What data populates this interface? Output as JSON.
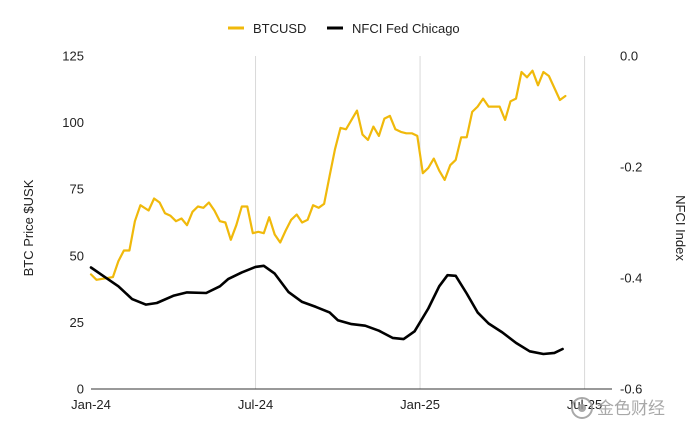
{
  "chart_data": {
    "type": "line",
    "title": "",
    "legend": {
      "placement": "top-center"
    },
    "grid": {
      "vertical": true,
      "horizontal": false
    },
    "x_ticks": [
      "Jan-24",
      "Jul-24",
      "Jan-25",
      "Jul-25"
    ],
    "x_range": [
      0,
      19
    ],
    "y_left": {
      "label": "BTC Price $USK",
      "range": [
        0,
        125
      ],
      "ticks": [
        0,
        25,
        50,
        75,
        100,
        125
      ]
    },
    "y_right": {
      "label": "NFCI Index",
      "range": [
        -0.6,
        0.0
      ],
      "ticks": [
        "0.0",
        "-0.2",
        "-0.4",
        "-0.6"
      ]
    },
    "series": [
      {
        "name": "BTCUSD",
        "axis": "left",
        "color": "#F0B90B",
        "points": [
          [
            0.0,
            43
          ],
          [
            0.2,
            41
          ],
          [
            0.5,
            41.5
          ],
          [
            0.8,
            42
          ],
          [
            1.0,
            48
          ],
          [
            1.2,
            52
          ],
          [
            1.4,
            52
          ],
          [
            1.6,
            63
          ],
          [
            1.8,
            69
          ],
          [
            2.1,
            67
          ],
          [
            2.3,
            71.5
          ],
          [
            2.5,
            70
          ],
          [
            2.7,
            66
          ],
          [
            2.9,
            65
          ],
          [
            3.1,
            63
          ],
          [
            3.3,
            64
          ],
          [
            3.5,
            61.5
          ],
          [
            3.7,
            66.5
          ],
          [
            3.9,
            68.5
          ],
          [
            4.1,
            68
          ],
          [
            4.3,
            70
          ],
          [
            4.5,
            67
          ],
          [
            4.7,
            63
          ],
          [
            4.9,
            62.5
          ],
          [
            5.1,
            56
          ],
          [
            5.3,
            61.5
          ],
          [
            5.5,
            68.5
          ],
          [
            5.7,
            68.5
          ],
          [
            5.9,
            58.5
          ],
          [
            6.1,
            59
          ],
          [
            6.3,
            58.5
          ],
          [
            6.5,
            64.5
          ],
          [
            6.7,
            58
          ],
          [
            6.9,
            55
          ],
          [
            7.1,
            59.5
          ],
          [
            7.3,
            63.5
          ],
          [
            7.5,
            65.5
          ],
          [
            7.7,
            62.5
          ],
          [
            7.9,
            63.5
          ],
          [
            8.1,
            69
          ],
          [
            8.3,
            68
          ],
          [
            8.5,
            69.5
          ],
          [
            8.7,
            80
          ],
          [
            8.9,
            90
          ],
          [
            9.1,
            98
          ],
          [
            9.3,
            97.5
          ],
          [
            9.5,
            101
          ],
          [
            9.7,
            104.5
          ],
          [
            9.9,
            95.5
          ],
          [
            10.1,
            93.5
          ],
          [
            10.3,
            98.5
          ],
          [
            10.5,
            95
          ],
          [
            10.7,
            101.5
          ],
          [
            10.9,
            102.5
          ],
          [
            11.1,
            97.5
          ],
          [
            11.3,
            96.5
          ],
          [
            11.5,
            96
          ],
          [
            11.7,
            96
          ],
          [
            11.9,
            95
          ],
          [
            12.1,
            81
          ],
          [
            12.3,
            83
          ],
          [
            12.5,
            86.5
          ],
          [
            12.7,
            82
          ],
          [
            12.9,
            78.5
          ],
          [
            13.1,
            84
          ],
          [
            13.3,
            86
          ],
          [
            13.5,
            94.5
          ],
          [
            13.7,
            94.5
          ],
          [
            13.9,
            104
          ],
          [
            14.1,
            106
          ],
          [
            14.3,
            109
          ],
          [
            14.5,
            106
          ],
          [
            14.7,
            106
          ],
          [
            14.9,
            106
          ],
          [
            15.1,
            101
          ],
          [
            15.3,
            108
          ],
          [
            15.5,
            109
          ],
          [
            15.7,
            119
          ],
          [
            15.9,
            117
          ],
          [
            16.1,
            119.5
          ],
          [
            16.3,
            114
          ],
          [
            16.5,
            119
          ],
          [
            16.7,
            117.5
          ],
          [
            16.9,
            113
          ],
          [
            17.1,
            108.5
          ],
          [
            17.3,
            110
          ]
        ]
      },
      {
        "name": "NFCI Fed Chicago",
        "axis": "right",
        "color": "#000000",
        "points": [
          [
            0.0,
            -0.381
          ],
          [
            0.5,
            -0.398
          ],
          [
            1.0,
            -0.415
          ],
          [
            1.5,
            -0.438
          ],
          [
            2.0,
            -0.448
          ],
          [
            2.4,
            -0.445
          ],
          [
            3.0,
            -0.432
          ],
          [
            3.5,
            -0.426
          ],
          [
            4.2,
            -0.427
          ],
          [
            4.7,
            -0.415
          ],
          [
            5.0,
            -0.402
          ],
          [
            5.5,
            -0.39
          ],
          [
            6.0,
            -0.38
          ],
          [
            6.3,
            -0.378
          ],
          [
            6.7,
            -0.392
          ],
          [
            7.2,
            -0.425
          ],
          [
            7.7,
            -0.443
          ],
          [
            8.2,
            -0.452
          ],
          [
            8.7,
            -0.462
          ],
          [
            9.0,
            -0.476
          ],
          [
            9.5,
            -0.483
          ],
          [
            10.0,
            -0.486
          ],
          [
            10.5,
            -0.495
          ],
          [
            11.0,
            -0.508
          ],
          [
            11.4,
            -0.51
          ],
          [
            11.8,
            -0.496
          ],
          [
            12.3,
            -0.455
          ],
          [
            12.7,
            -0.415
          ],
          [
            13.0,
            -0.395
          ],
          [
            13.3,
            -0.396
          ],
          [
            13.7,
            -0.428
          ],
          [
            14.1,
            -0.462
          ],
          [
            14.5,
            -0.482
          ],
          [
            15.0,
            -0.498
          ],
          [
            15.5,
            -0.517
          ],
          [
            16.0,
            -0.532
          ],
          [
            16.5,
            -0.537
          ],
          [
            16.9,
            -0.535
          ],
          [
            17.2,
            -0.528
          ]
        ]
      }
    ]
  },
  "watermark": {
    "text": "金色财经"
  }
}
